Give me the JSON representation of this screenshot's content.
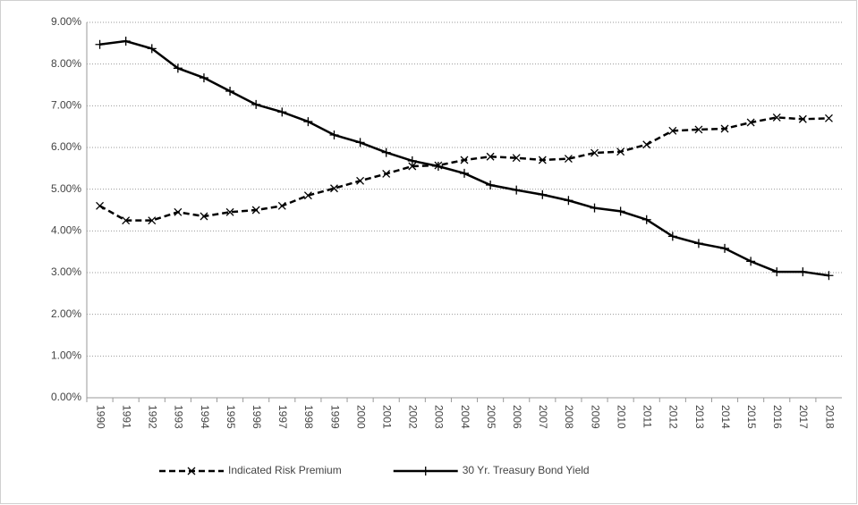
{
  "chart_data": {
    "type": "line",
    "categories": [
      "1990",
      "1991",
      "1992",
      "1993",
      "1994",
      "1995",
      "1996",
      "1997",
      "1998",
      "1999",
      "2000",
      "2001",
      "2002",
      "2003",
      "2004",
      "2005",
      "2006",
      "2007",
      "2008",
      "2009",
      "2010",
      "2011",
      "2012",
      "2013",
      "2014",
      "2015",
      "2016",
      "2017",
      "2018"
    ],
    "series": [
      {
        "name": "Indicated Risk Premium",
        "color": "#000000",
        "dash": true,
        "marker": "x",
        "values": [
          4.6,
          4.25,
          4.25,
          4.45,
          4.35,
          4.45,
          4.5,
          4.6,
          4.85,
          5.02,
          5.2,
          5.37,
          5.55,
          5.57,
          5.7,
          5.78,
          5.75,
          5.7,
          5.73,
          5.87,
          5.9,
          6.07,
          6.4,
          6.43,
          6.45,
          6.6,
          6.72,
          6.68,
          6.7
        ]
      },
      {
        "name": "30 Yr. Treasury Bond Yield",
        "color": "#000000",
        "dash": false,
        "marker": "+",
        "values": [
          8.47,
          8.55,
          8.37,
          7.9,
          7.67,
          7.35,
          7.03,
          6.85,
          6.62,
          6.3,
          6.12,
          5.88,
          5.68,
          5.55,
          5.38,
          5.1,
          4.98,
          4.87,
          4.73,
          4.55,
          4.47,
          4.27,
          3.87,
          3.7,
          3.58,
          3.27,
          3.02,
          3.02,
          2.93
        ]
      }
    ],
    "ylim": [
      0,
      9
    ],
    "yticks": [
      {
        "value": 0,
        "label": "0.00%"
      },
      {
        "value": 1,
        "label": "1.00%"
      },
      {
        "value": 2,
        "label": "2.00%"
      },
      {
        "value": 3,
        "label": "3.00%"
      },
      {
        "value": 4,
        "label": "4.00%"
      },
      {
        "value": 5,
        "label": "5.00%"
      },
      {
        "value": 6,
        "label": "6.00%"
      },
      {
        "value": 7,
        "label": "7.00%"
      },
      {
        "value": 8,
        "label": "8.00%"
      },
      {
        "value": 9,
        "label": "9.00%"
      }
    ],
    "grid": true,
    "legend": "bottom"
  }
}
